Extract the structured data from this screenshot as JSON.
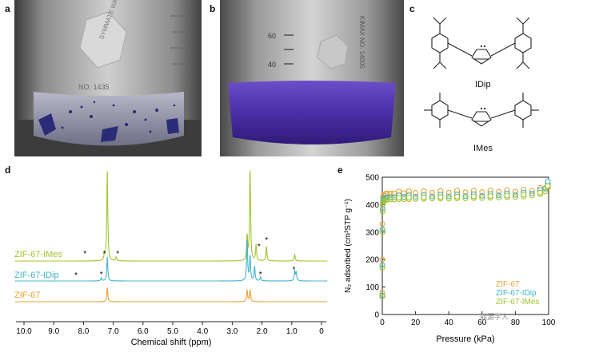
{
  "panels": {
    "a": "a",
    "b": "b",
    "c": "c",
    "d": "d",
    "e": "e"
  },
  "photo_a": {
    "hex_text": "SYMMATE WAR",
    "bottom_text": "NO. 1435"
  },
  "photo_b": {
    "tick_60": "60",
    "tick_40": "40",
    "side_text": "KIMAX NO. 14005"
  },
  "structures": {
    "top_label": "IDip",
    "bottom_label": "IMes"
  },
  "nmr": {
    "series_labels": [
      "ZIF-67-IMes",
      "ZIF-67-IDip",
      "ZIF-67"
    ],
    "series_colors": [
      "#a3c42d",
      "#45b3c9",
      "#e8a435"
    ],
    "xlabel": "Chemical shift (ppm)",
    "xticks": [
      "10.0",
      "9.0",
      "8.0",
      "7.0",
      "6.0",
      "5.0",
      "4.0",
      "3.0",
      "2.0",
      "1.0",
      "0"
    ],
    "star": "*"
  },
  "chart_data": {
    "type": "scatter",
    "xlabel": "Pressure (kPa)",
    "ylabel": "N₂ adsorbed (cm³STP g⁻¹)",
    "xlim": [
      0,
      100
    ],
    "ylim": [
      0,
      500
    ],
    "xticks": [
      "0",
      "20",
      "40",
      "60",
      "80",
      "100"
    ],
    "yticks": [
      "0",
      "100",
      "200",
      "300",
      "400",
      "500"
    ],
    "legend_position": "bottom-right",
    "series": [
      {
        "name": "ZIF-67",
        "color": "#e8a435",
        "x": [
          0.02,
          0.05,
          0.1,
          0.2,
          0.4,
          0.7,
          1,
          2,
          3,
          5,
          7,
          10,
          13,
          16,
          20,
          25,
          30,
          35,
          40,
          45,
          50,
          55,
          60,
          65,
          70,
          75,
          80,
          85,
          90,
          95,
          98,
          99.5
        ],
        "y": [
          80,
          200,
          330,
          400,
          425,
          432,
          436,
          440,
          441,
          441,
          442,
          442,
          442,
          443,
          443,
          443,
          444,
          444,
          444,
          445,
          445,
          445,
          446,
          446,
          447,
          447,
          448,
          449,
          451,
          455,
          460,
          468
        ]
      },
      {
        "name": "ZIF-67-IDip",
        "color": "#45b3c9",
        "x": [
          0.02,
          0.05,
          0.1,
          0.2,
          0.4,
          0.7,
          1,
          2,
          3,
          5,
          7,
          10,
          13,
          16,
          20,
          25,
          30,
          35,
          40,
          45,
          50,
          55,
          60,
          65,
          70,
          75,
          80,
          85,
          90,
          95,
          98,
          99.5
        ],
        "y": [
          70,
          180,
          310,
          385,
          410,
          418,
          422,
          425,
          426,
          427,
          427,
          428,
          428,
          428,
          429,
          429,
          430,
          430,
          430,
          431,
          431,
          432,
          432,
          433,
          434,
          435,
          436,
          438,
          441,
          447,
          458,
          478
        ]
      },
      {
        "name": "ZIF-67-IMes",
        "color": "#a3c42d",
        "x": [
          0.02,
          0.05,
          0.1,
          0.2,
          0.4,
          0.7,
          1,
          2,
          3,
          5,
          7,
          10,
          13,
          16,
          20,
          25,
          30,
          35,
          40,
          45,
          50,
          55,
          60,
          65,
          70,
          75,
          80,
          85,
          90,
          95,
          98,
          99.5
        ],
        "y": [
          65,
          170,
          300,
          375,
          402,
          410,
          414,
          417,
          418,
          419,
          419,
          420,
          420,
          420,
          421,
          421,
          422,
          422,
          422,
          423,
          423,
          424,
          424,
          425,
          426,
          427,
          428,
          430,
          433,
          438,
          448,
          462
        ]
      }
    ]
  },
  "watermark": "能源学人"
}
